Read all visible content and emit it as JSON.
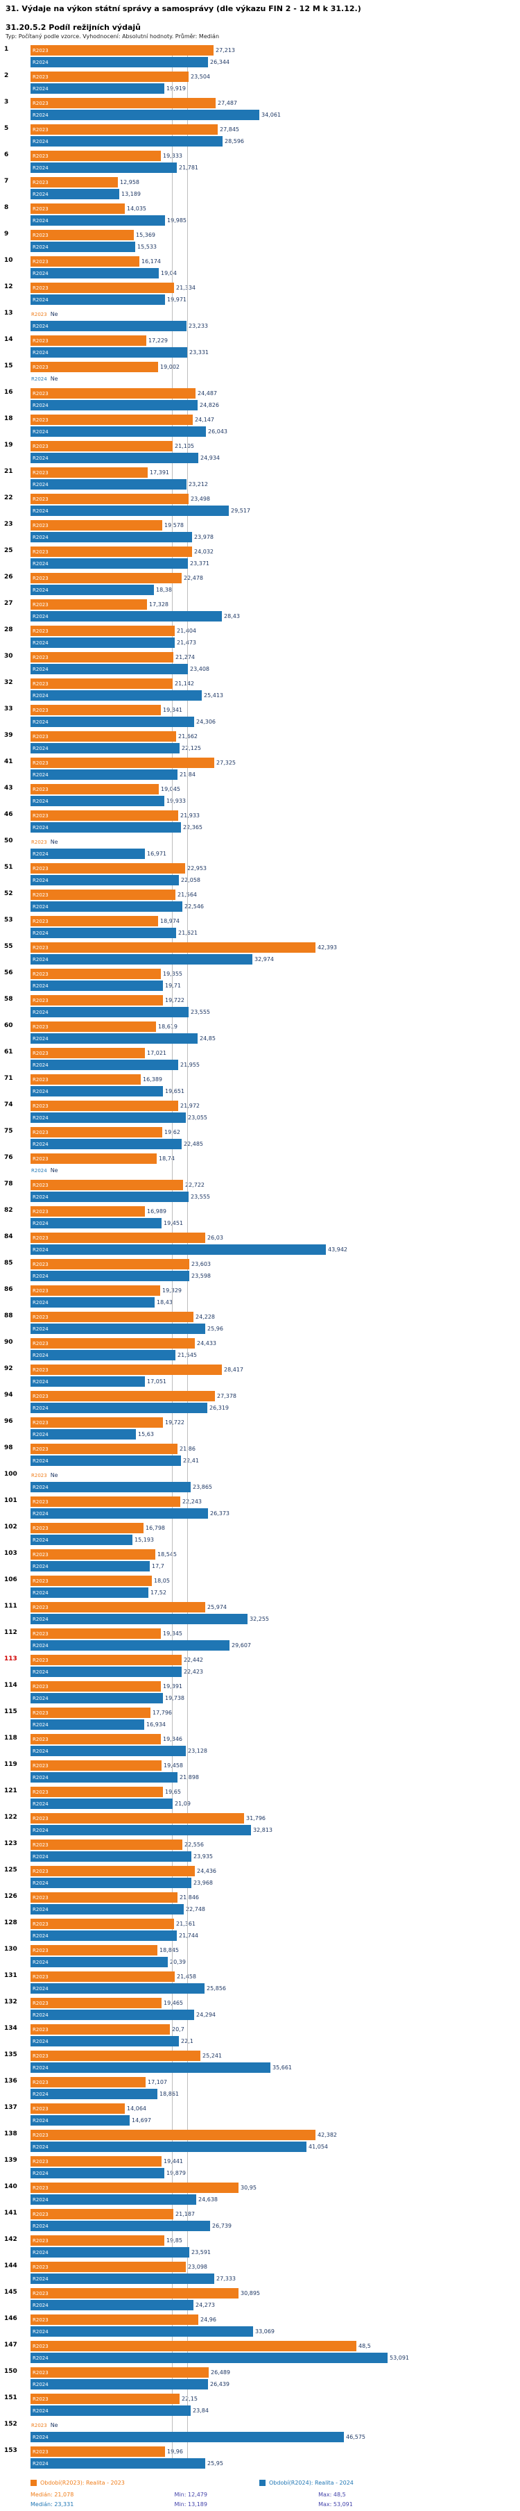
{
  "header": {
    "title": "31. Výdaje na výkon státní správy a samosprávy (dle výkazu FIN 2 - 12 M k 31.12.)",
    "subtitle": "31.20.5.2 Podíl režijních výdajů",
    "meta": "Typ: Počítaný podle vzorce. Vyhodnocení: Absolutní hodnoty. Průměr: Medián"
  },
  "legend": {
    "r2023": "Období(R2023): Realita - 2023",
    "r2024": "Období(R2024): Realita - 2024"
  },
  "stats": {
    "r2023": {
      "median": "Medián: 21,078",
      "min": "Min: 12,479",
      "max": "Max: 48,5"
    },
    "r2024": {
      "median": "Medián: 23,331",
      "min": "Min: 13,189",
      "max": "Max: 53,091"
    }
  },
  "colors": {
    "r2023": "#ef7d1a",
    "r2024": "#1f76b4",
    "value_text": "#1f3864",
    "stats_text": "#4444aa",
    "highlight_row": "#d00000",
    "median_line": "#bdbdbd"
  },
  "chart_data": {
    "type": "bar",
    "orientation": "horizontal",
    "title": "31.20.5.2 Podíl režijních výdajů",
    "xlim": [
      0,
      56
    ],
    "grid": "two vertical median reference lines",
    "legend_position": "bottom",
    "null_label": "Ne",
    "highlighted_row": "113",
    "series_labels": {
      "r2023": "R2023",
      "r2024": "R2024"
    },
    "median_lines": [
      21.078,
      23.331
    ],
    "stats": {
      "r2023": {
        "median": 21.078,
        "min": 12.479,
        "max": 48.5
      },
      "r2024": {
        "median": 23.331,
        "min": 13.189,
        "max": 53.091
      }
    },
    "rows": [
      {
        "id": "1",
        "r2023": 27.213,
        "r2024": 26.344
      },
      {
        "id": "2",
        "r2023": 23.504,
        "r2024": 19.919
      },
      {
        "id": "3",
        "r2023": 27.487,
        "r2024": 34.061
      },
      {
        "id": "5",
        "r2023": 27.845,
        "r2024": 28.596
      },
      {
        "id": "6",
        "r2023": 19.333,
        "r2024": 21.781
      },
      {
        "id": "7",
        "r2023": 12.958,
        "r2024": 13.189
      },
      {
        "id": "8",
        "r2023": 14.035,
        "r2024": 19.985
      },
      {
        "id": "9",
        "r2023": 15.369,
        "r2024": 15.533
      },
      {
        "id": "10",
        "r2023": 16.174,
        "r2024": 19.04
      },
      {
        "id": "12",
        "r2023": 21.334,
        "r2024": 19.971
      },
      {
        "id": "13",
        "r2023": null,
        "r2024": 23.233
      },
      {
        "id": "14",
        "r2023": 17.229,
        "r2024": 23.331
      },
      {
        "id": "15",
        "r2023": 19.002,
        "r2024": null
      },
      {
        "id": "16",
        "r2023": 24.487,
        "r2024": 24.826
      },
      {
        "id": "18",
        "r2023": 24.147,
        "r2024": 26.043
      },
      {
        "id": "19",
        "r2023": 21.105,
        "r2024": 24.934
      },
      {
        "id": "21",
        "r2023": 17.391,
        "r2024": 23.212
      },
      {
        "id": "22",
        "r2023": 23.498,
        "r2024": 29.517
      },
      {
        "id": "23",
        "r2023": 19.578,
        "r2024": 23.978
      },
      {
        "id": "25",
        "r2023": 24.032,
        "r2024": 23.371
      },
      {
        "id": "26",
        "r2023": 22.478,
        "r2024": 18.38
      },
      {
        "id": "27",
        "r2023": 17.328,
        "r2024": 28.43
      },
      {
        "id": "28",
        "r2023": 21.404,
        "r2024": 21.473
      },
      {
        "id": "30",
        "r2023": 21.274,
        "r2024": 23.408
      },
      {
        "id": "32",
        "r2023": 21.142,
        "r2024": 25.413
      },
      {
        "id": "33",
        "r2023": 19.341,
        "r2024": 24.306
      },
      {
        "id": "39",
        "r2023": 21.662,
        "r2024": 22.125
      },
      {
        "id": "41",
        "r2023": 27.325,
        "r2024": 21.84
      },
      {
        "id": "43",
        "r2023": 19.045,
        "r2024": 19.933
      },
      {
        "id": "46",
        "r2023": 21.933,
        "r2024": 22.365
      },
      {
        "id": "50",
        "r2023": null,
        "r2024": 16.971
      },
      {
        "id": "51",
        "r2023": 22.953,
        "r2024": 22.058
      },
      {
        "id": "52",
        "r2023": 21.564,
        "r2024": 22.546
      },
      {
        "id": "53",
        "r2023": 18.974,
        "r2024": 21.621
      },
      {
        "id": "55",
        "r2023": 42.393,
        "r2024": 32.974
      },
      {
        "id": "56",
        "r2023": 19.355,
        "r2024": 19.71
      },
      {
        "id": "58",
        "r2023": 19.722,
        "r2024": 23.555
      },
      {
        "id": "60",
        "r2023": 18.619,
        "r2024": 24.85
      },
      {
        "id": "61",
        "r2023": 17.021,
        "r2024": 21.955
      },
      {
        "id": "71",
        "r2023": 16.389,
        "r2024": 19.651
      },
      {
        "id": "74",
        "r2023": 21.972,
        "r2024": 23.055
      },
      {
        "id": "75",
        "r2023": 19.62,
        "r2024": 22.485
      },
      {
        "id": "76",
        "r2023": 18.74,
        "r2024": null
      },
      {
        "id": "78",
        "r2023": 22.722,
        "r2024": 23.555
      },
      {
        "id": "82",
        "r2023": 16.989,
        "r2024": 19.451
      },
      {
        "id": "84",
        "r2023": 26.03,
        "r2024": 43.942
      },
      {
        "id": "85",
        "r2023": 23.603,
        "r2024": 23.598
      },
      {
        "id": "86",
        "r2023": 19.329,
        "r2024": 18.43
      },
      {
        "id": "88",
        "r2023": 24.228,
        "r2024": 25.96
      },
      {
        "id": "90",
        "r2023": 24.433,
        "r2024": 21.545
      },
      {
        "id": "92",
        "r2023": 28.417,
        "r2024": 17.051
      },
      {
        "id": "94",
        "r2023": 27.378,
        "r2024": 26.319
      },
      {
        "id": "96",
        "r2023": 19.722,
        "r2024": 15.63
      },
      {
        "id": "98",
        "r2023": 21.86,
        "r2024": 22.41
      },
      {
        "id": "100",
        "r2023": null,
        "r2024": 23.865
      },
      {
        "id": "101",
        "r2023": 22.243,
        "r2024": 26.373
      },
      {
        "id": "102",
        "r2023": 16.798,
        "r2024": 15.193
      },
      {
        "id": "103",
        "r2023": 18.545,
        "r2024": 17.7
      },
      {
        "id": "106",
        "r2023": 18.05,
        "r2024": 17.52
      },
      {
        "id": "111",
        "r2023": 25.974,
        "r2024": 32.255
      },
      {
        "id": "112",
        "r2023": 19.345,
        "r2024": 29.607
      },
      {
        "id": "113",
        "r2023": 22.442,
        "r2024": 22.423
      },
      {
        "id": "114",
        "r2023": 19.391,
        "r2024": 19.738
      },
      {
        "id": "115",
        "r2023": 17.796,
        "r2024": 16.934
      },
      {
        "id": "118",
        "r2023": 19.346,
        "r2024": 23.128
      },
      {
        "id": "119",
        "r2023": 19.458,
        "r2024": 21.898
      },
      {
        "id": "121",
        "r2023": 19.65,
        "r2024": 21.09
      },
      {
        "id": "122",
        "r2023": 31.796,
        "r2024": 32.813
      },
      {
        "id": "123",
        "r2023": 22.556,
        "r2024": 23.935
      },
      {
        "id": "125",
        "r2023": 24.436,
        "r2024": 23.968
      },
      {
        "id": "126",
        "r2023": 21.846,
        "r2024": 22.748
      },
      {
        "id": "128",
        "r2023": 21.361,
        "r2024": 21.744
      },
      {
        "id": "130",
        "r2023": 18.845,
        "r2024": 20.39
      },
      {
        "id": "131",
        "r2023": 21.458,
        "r2024": 25.856
      },
      {
        "id": "132",
        "r2023": 19.465,
        "r2024": 24.294
      },
      {
        "id": "134",
        "r2023": 20.7,
        "r2024": 22.1
      },
      {
        "id": "135",
        "r2023": 25.241,
        "r2024": 35.661
      },
      {
        "id": "136",
        "r2023": 17.107,
        "r2024": 18.861
      },
      {
        "id": "137",
        "r2023": 14.064,
        "r2024": 14.697
      },
      {
        "id": "138",
        "r2023": 42.382,
        "r2024": 41.054
      },
      {
        "id": "139",
        "r2023": 19.441,
        "r2024": 19.879
      },
      {
        "id": "140",
        "r2023": 30.95,
        "r2024": 24.638
      },
      {
        "id": "141",
        "r2023": 21.187,
        "r2024": 26.739
      },
      {
        "id": "142",
        "r2023": 19.85,
        "r2024": 23.591
      },
      {
        "id": "144",
        "r2023": 23.098,
        "r2024": 27.333
      },
      {
        "id": "145",
        "r2023": 30.895,
        "r2024": 24.273
      },
      {
        "id": "146",
        "r2023": 24.96,
        "r2024": 33.069
      },
      {
        "id": "147",
        "r2023": 48.5,
        "r2024": 53.091
      },
      {
        "id": "150",
        "r2023": 26.489,
        "r2024": 26.439
      },
      {
        "id": "151",
        "r2023": 22.15,
        "r2024": 23.84
      },
      {
        "id": "152",
        "r2023": null,
        "r2024": 46.575
      },
      {
        "id": "153",
        "r2023": 19.96,
        "r2024": 25.95
      }
    ]
  }
}
